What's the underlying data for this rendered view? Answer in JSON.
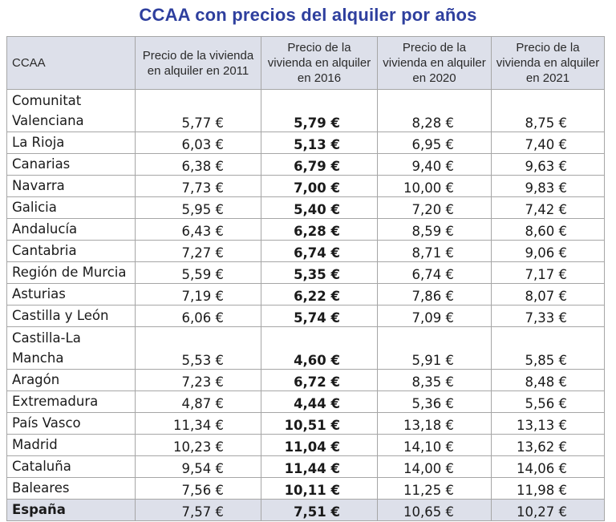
{
  "title": "CCAA con precios del alquiler por años",
  "columns": [
    "CCAA",
    "Precio de la vivienda en alquiler en 2011",
    "Precio de la vivienda en alquiler en 2016",
    "Precio de la vivienda en alquiler en 2020",
    "Precio de la vivienda en alquiler en 2021"
  ],
  "rows": [
    {
      "name": "Comunitat Valenciana",
      "v2011": "5,77 €",
      "v2016": "5,79 €",
      "v2020": "8,28 €",
      "v2021": "8,75 €"
    },
    {
      "name": "La Rioja",
      "v2011": "6,03 €",
      "v2016": "5,13 €",
      "v2020": "6,95 €",
      "v2021": "7,40 €"
    },
    {
      "name": "Canarias",
      "v2011": "6,38 €",
      "v2016": "6,79 €",
      "v2020": "9,40 €",
      "v2021": "9,63 €"
    },
    {
      "name": "Navarra",
      "v2011": "7,73 €",
      "v2016": "7,00 €",
      "v2020": "10,00 €",
      "v2021": "9,83 €"
    },
    {
      "name": "Galicia",
      "v2011": "5,95 €",
      "v2016": "5,40 €",
      "v2020": "7,20 €",
      "v2021": "7,42 €"
    },
    {
      "name": "Andalucía",
      "v2011": "6,43 €",
      "v2016": "6,28 €",
      "v2020": "8,59 €",
      "v2021": "8,60 €"
    },
    {
      "name": "Cantabria",
      "v2011": "7,27 €",
      "v2016": "6,74 €",
      "v2020": "8,71 €",
      "v2021": "9,06 €"
    },
    {
      "name": "Región de Murcia",
      "v2011": "5,59 €",
      "v2016": "5,35 €",
      "v2020": "6,74 €",
      "v2021": "7,17 €"
    },
    {
      "name": "Asturias",
      "v2011": "7,19 €",
      "v2016": "6,22 €",
      "v2020": "7,86 €",
      "v2021": "8,07 €"
    },
    {
      "name": "Castilla y León",
      "v2011": "6,06 €",
      "v2016": "5,74 €",
      "v2020": "7,09 €",
      "v2021": "7,33 €"
    },
    {
      "name": "Castilla-La Mancha",
      "v2011": "5,53 €",
      "v2016": "4,60 €",
      "v2020": "5,91 €",
      "v2021": "5,85 €"
    },
    {
      "name": "Aragón",
      "v2011": "7,23 €",
      "v2016": "6,72 €",
      "v2020": "8,35 €",
      "v2021": "8,48 €"
    },
    {
      "name": "Extremadura",
      "v2011": "4,87 €",
      "v2016": "4,44 €",
      "v2020": "5,36 €",
      "v2021": "5,56 €"
    },
    {
      "name": "País Vasco",
      "v2011": "11,34 €",
      "v2016": "10,51 €",
      "v2020": "13,18 €",
      "v2021": "13,13 €"
    },
    {
      "name": "Madrid",
      "v2011": "10,23 €",
      "v2016": "11,04 €",
      "v2020": "14,10 €",
      "v2021": "13,62 €"
    },
    {
      "name": "Cataluña",
      "v2011": "9,54 €",
      "v2016": "11,44 €",
      "v2020": "14,00 €",
      "v2021": "14,06 €"
    },
    {
      "name": "Baleares",
      "v2011": "7,56 €",
      "v2016": "10,11 €",
      "v2020": "11,25 €",
      "v2021": "11,98 €"
    }
  ],
  "total": {
    "name": "España",
    "v2011": "7,57 €",
    "v2016": "7,51 €",
    "v2020": "10,65 €",
    "v2021": "10,27 €"
  }
}
